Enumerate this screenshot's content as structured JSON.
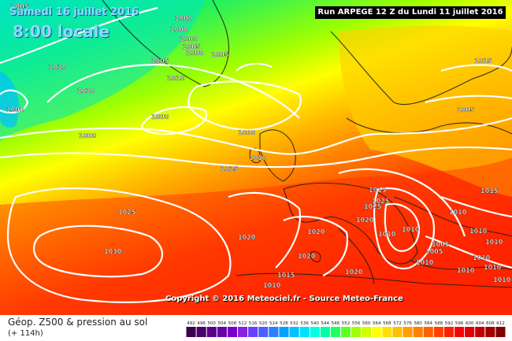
{
  "header": {
    "date": "Samedi 16 juillet 2016",
    "local_time": "8:00 locale",
    "run": "Run ARPEGE 12 Z du Lundi 11 juillet 2016"
  },
  "copyright": "Copyright © 2016 Meteociel.fr - Source Meteo-France",
  "legend": {
    "title": "Géop. Z500 & pression au sol",
    "subtitle": "(+ 114h)",
    "scale_values": [
      "492",
      "496",
      "500",
      "504",
      "508",
      "512",
      "516",
      "520",
      "524",
      "528",
      "532",
      "536",
      "540",
      "544",
      "548",
      "552",
      "556",
      "560",
      "564",
      "568",
      "572",
      "576",
      "580",
      "584",
      "588",
      "592",
      "596",
      "600",
      "604",
      "608",
      "612"
    ],
    "scale_colors": [
      "#3b004f",
      "#4a006a",
      "#5a0088",
      "#6a00a8",
      "#7800c8",
      "#8a20e0",
      "#6a40ff",
      "#4a60ff",
      "#2a80ff",
      "#00a0ff",
      "#00c0ff",
      "#00e0ff",
      "#00ffe0",
      "#00ffa0",
      "#20ff60",
      "#60ff20",
      "#a0ff00",
      "#d0ff00",
      "#ffff00",
      "#ffe000",
      "#ffc000",
      "#ffa000",
      "#ff8000",
      "#ff6000",
      "#ff4000",
      "#ff2000",
      "#ff0000",
      "#e00000",
      "#c00000",
      "#a00000",
      "#800000"
    ]
  },
  "map": {
    "pressure_labels": [
      "1005",
      "1000",
      "1000",
      "1005",
      "1000",
      "1000",
      "1010",
      "1010",
      "1005",
      "1015",
      "1005",
      "1010",
      "1000",
      "1000",
      "1000",
      "1000",
      "1005",
      "1015",
      "1010",
      "1015",
      "1025",
      "1025",
      "1025",
      "1030",
      "1020",
      "1020",
      "1020",
      "1020",
      "1015",
      "1010",
      "1020",
      "1010",
      "1010",
      "1010",
      "1005",
      "1010",
      "1010",
      "1010",
      "1010",
      "1010",
      "1010",
      "1015",
      "1010",
      "1005"
    ]
  }
}
